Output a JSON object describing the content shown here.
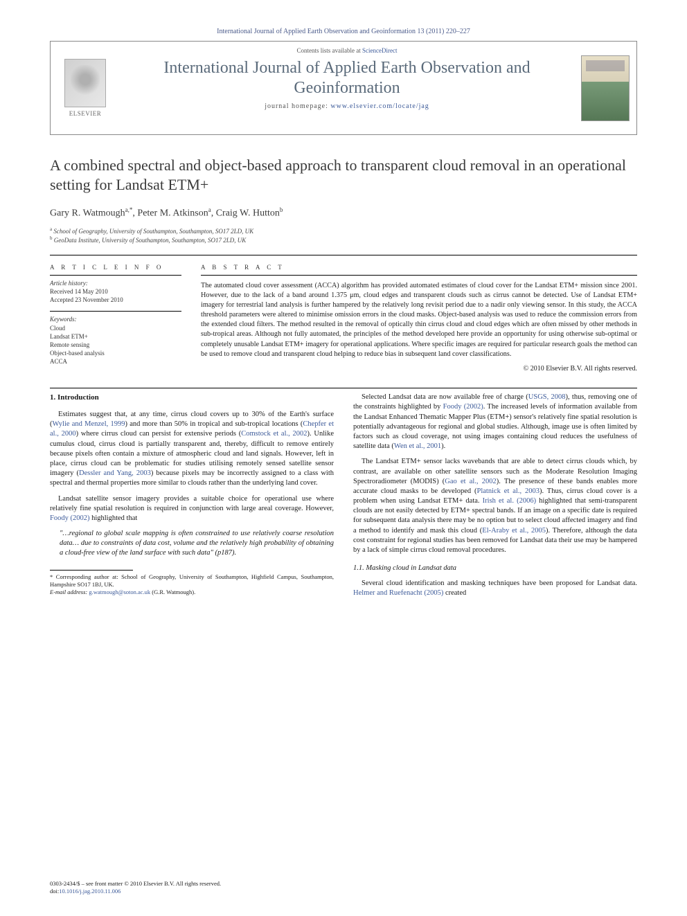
{
  "header": {
    "citation": "International Journal of Applied Earth Observation and Geoinformation 13 (2011) 220–227"
  },
  "masthead": {
    "contents_prefix": "Contents lists available at ",
    "contents_link": "ScienceDirect",
    "journal": "International Journal of Applied Earth Observation and Geoinformation",
    "homepage_prefix": "journal homepage: ",
    "homepage_url": "www.elsevier.com/locate/jag",
    "publisher": "ELSEVIER"
  },
  "article": {
    "title": "A combined spectral and object-based approach to transparent cloud removal in an operational setting for Landsat ETM+",
    "authors_html": "Gary R. Watmough",
    "author_sup_1": "a,*",
    "author_2": ", Peter M. Atkinson",
    "author_sup_2": "a",
    "author_3": ", Craig W. Hutton",
    "author_sup_3": "b",
    "affil_a_sup": "a",
    "affil_a": " School of Geography, University of Southampton, Southampton, SO17 2LD, UK",
    "affil_b_sup": "b",
    "affil_b": " GeoData Institute, University of Southampton, Southampton, SO17 2LD, UK"
  },
  "info": {
    "heading": "a r t i c l e   i n f o",
    "history_label": "Article history:",
    "received": "Received 14 May 2010",
    "accepted": "Accepted 23 November 2010",
    "keywords_label": "Keywords:",
    "kw1": "Cloud",
    "kw2": "Landsat ETM+",
    "kw3": "Remote sensing",
    "kw4": "Object-based analysis",
    "kw5": "ACCA"
  },
  "abstract": {
    "heading": "a b s t r a c t",
    "text": "The automated cloud cover assessment (ACCA) algorithm has provided automated estimates of cloud cover for the Landsat ETM+ mission since 2001. However, due to the lack of a band around 1.375 μm, cloud edges and transparent clouds such as cirrus cannot be detected. Use of Landsat ETM+ imagery for terrestrial land analysis is further hampered by the relatively long revisit period due to a nadir only viewing sensor. In this study, the ACCA threshold parameters were altered to minimise omission errors in the cloud masks. Object-based analysis was used to reduce the commission errors from the extended cloud filters. The method resulted in the removal of optically thin cirrus cloud and cloud edges which are often missed by other methods in sub-tropical areas. Although not fully automated, the principles of the method developed here provide an opportunity for using otherwise sub-optimal or completely unusable Landsat ETM+ imagery for operational applications. Where specific images are required for particular research goals the method can be used to remove cloud and transparent cloud helping to reduce bias in subsequent land cover classifications.",
    "copyright": "© 2010 Elsevier B.V. All rights reserved."
  },
  "body": {
    "sec1": "1.  Introduction",
    "p1a": "Estimates suggest that, at any time, cirrus cloud covers up to 30% of the Earth's surface (",
    "p1c1": "Wylie and Menzel, 1999",
    "p1b": ") and more than 50% in tropical and sub-tropical locations (",
    "p1c2": "Chepfer et al., 2000",
    "p1c": ") where cirrus cloud can persist for extensive periods (",
    "p1c3": "Comstock et al., 2002",
    "p1d": "). Unlike cumulus cloud, cirrus cloud is partially transparent and, thereby, difficult to remove entirely because pixels often contain a mixture of atmospheric cloud and land signals. However, left in place, cirrus cloud can be problematic for studies utilising remotely sensed satellite sensor imagery (",
    "p1c4": "Dessler and Yang, 2003",
    "p1e": ") because pixels may be incorrectly assigned to a class with spectral and thermal properties more similar to clouds rather than the underlying land cover.",
    "p2a": "Landsat satellite sensor imagery provides a suitable choice for operational use where relatively fine spatial resolution is required in conjunction with large areal coverage. However, ",
    "p2c1": "Foody (2002)",
    "p2b": " highlighted that",
    "quote": "\"…regional to global scale mapping is often constrained to use relatively coarse resolution data… due to constraints of data cost, volume and the relatively high probability of obtaining a cloud-free view of the land surface with such data\" (p187).",
    "p3a": "Selected Landsat data are now available free of charge (",
    "p3c1": "USGS, 2008",
    "p3b": "), thus, removing one of the constraints highlighted by ",
    "p3c2": "Foody (2002)",
    "p3c": ". The increased levels of information available from the Landsat Enhanced Thematic Mapper Plus (ETM+) sensor's relatively fine spatial resolution is potentially advantageous for regional and global studies. Although, image use is often limited by factors such as cloud coverage, not using images containing cloud reduces the usefulness of satellite data (",
    "p3c3": "Wen et al., 2001",
    "p3d": ").",
    "p4a": "The Landsat ETM+ sensor lacks wavebands that are able to detect cirrus clouds which, by contrast, are available on other satellite sensors such as the Moderate Resolution Imaging Spectroradiometer (MODIS) (",
    "p4c1": "Gao et al., 2002",
    "p4b": "). The presence of these bands enables more accurate cloud masks to be developed (",
    "p4c2": "Platnick et al., 2003",
    "p4c": "). Thus, cirrus cloud cover is a problem when using Landsat ETM+ data. ",
    "p4c3": "Irish et al. (2006)",
    "p4d": " highlighted that semi-transparent clouds are not easily detected by ETM+ spectral bands. If an image on a specific date is required for subsequent data analysis there may be no option but to select cloud affected imagery and find a method to identify and mask this cloud (",
    "p4c4": "El-Araby et al., 2005",
    "p4e": "). Therefore, although the data cost constraint for regional studies has been removed for Landsat data their use may be hampered by a lack of simple cirrus cloud removal procedures.",
    "sec11": "1.1.  Masking cloud in Landsat data",
    "p5a": "Several cloud identification and masking techniques have been proposed for Landsat data. ",
    "p5c1": "Helmer and Ruefenacht (2005)",
    "p5b": " created"
  },
  "footnotes": {
    "corr": "* Corresponding author at: School of Geography, University of Southampton, Highfield Campus, Southampton, Hampshire SO17 1BJ, UK.",
    "email_label": "E-mail address: ",
    "email": "g.watmough@soton.ac.uk",
    "email_who": " (G.R. Watmough)."
  },
  "footer": {
    "line1": "0303-2434/$ – see front matter © 2010 Elsevier B.V. All rights reserved.",
    "doi_prefix": "doi:",
    "doi": "10.1016/j.jag.2010.11.006"
  }
}
